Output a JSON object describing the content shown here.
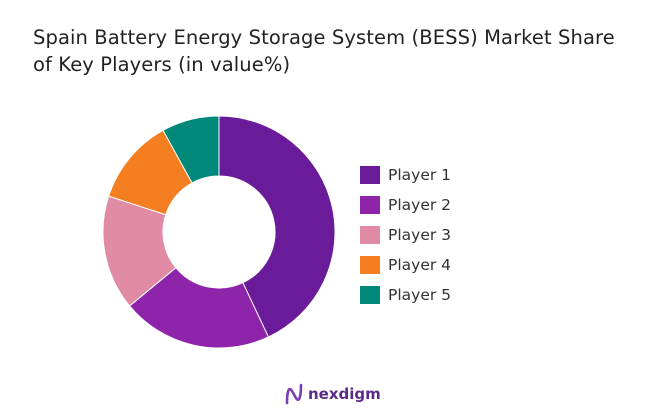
{
  "chart_data": {
    "type": "pie",
    "variant": "donut",
    "title": "Spain Battery Energy Storage System (BESS) Market Share of Key Players (in value%)",
    "categories": [
      "Player 1",
      "Player 2",
      "Player 3",
      "Player 4",
      "Player 5"
    ],
    "values": [
      43,
      21,
      16,
      12,
      8
    ],
    "colors": [
      "#6a1b9a",
      "#8e24aa",
      "#e08aa4",
      "#f57f20",
      "#00897b"
    ],
    "legend_position": "right"
  },
  "brand": {
    "name": "nexdigm",
    "icon": "nexdigm-logo-icon"
  }
}
